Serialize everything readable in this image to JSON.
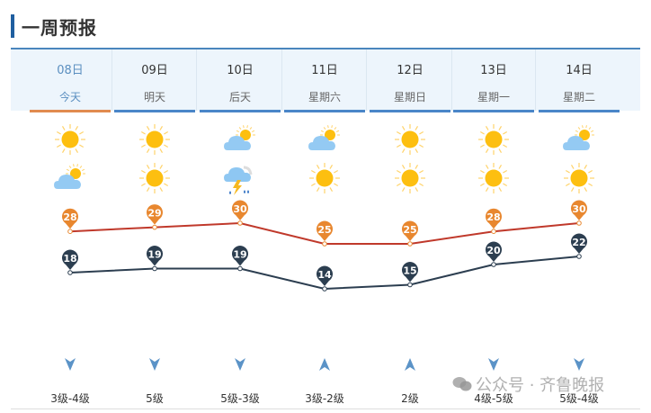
{
  "page": {
    "title": "一周预报",
    "accent_color": "#1f5fa0"
  },
  "days": [
    {
      "date": "08日",
      "weekday": "今天",
      "day_icon": "sunny",
      "night_icon": "partly-cloudy",
      "high": 28,
      "low": 18,
      "wind_dir": "down",
      "wind": "3级-4级",
      "today": true
    },
    {
      "date": "09日",
      "weekday": "明天",
      "day_icon": "sunny",
      "night_icon": "sunny",
      "high": 29,
      "low": 19,
      "wind_dir": "down",
      "wind": "5级"
    },
    {
      "date": "10日",
      "weekday": "后天",
      "day_icon": "partly-cloudy",
      "night_icon": "thunderstorm",
      "high": 30,
      "low": 19,
      "wind_dir": "down",
      "wind": "5级-3级"
    },
    {
      "date": "11日",
      "weekday": "星期六",
      "day_icon": "partly-cloudy",
      "night_icon": "sunny",
      "high": 25,
      "low": 14,
      "wind_dir": "up",
      "wind": "3级-2级"
    },
    {
      "date": "12日",
      "weekday": "星期日",
      "day_icon": "sunny",
      "night_icon": "sunny",
      "high": 25,
      "low": 15,
      "wind_dir": "up",
      "wind": "2级"
    },
    {
      "date": "13日",
      "weekday": "星期一",
      "day_icon": "sunny",
      "night_icon": "sunny",
      "high": 28,
      "low": 20,
      "wind_dir": "down",
      "wind": "4级-5级"
    },
    {
      "date": "14日",
      "weekday": "星期二",
      "day_icon": "partly-cloudy",
      "night_icon": "sunny",
      "high": 30,
      "low": 22,
      "wind_dir": "down",
      "wind": "5级-4级"
    }
  ],
  "colors": {
    "high_line": "#c0392b",
    "high_pin": "#e8872f",
    "low_line": "#2c3e50",
    "low_pin": "#2c3e50",
    "today_underline": "#e18b4f",
    "underline": "#4a86c8"
  },
  "watermark": {
    "text": "公众号 · 齐鲁晚报"
  }
}
